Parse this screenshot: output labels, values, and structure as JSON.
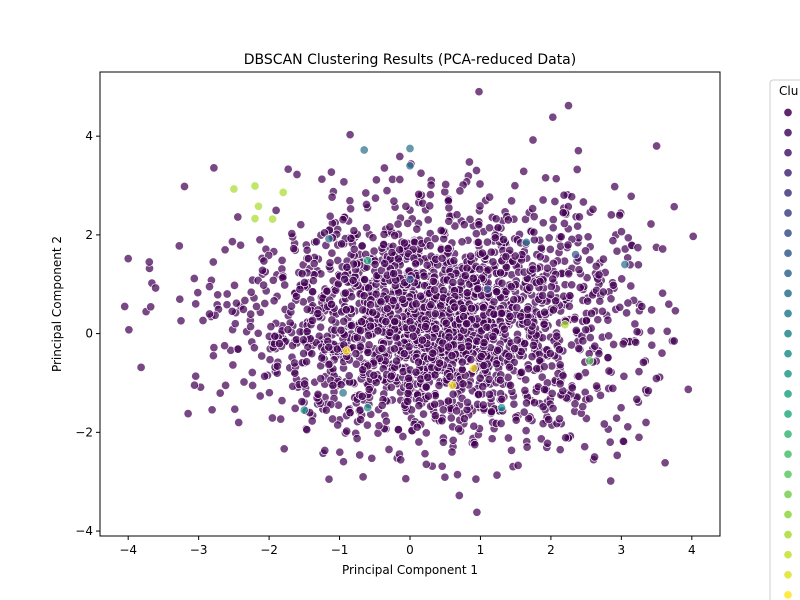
{
  "chart_data": {
    "type": "scatter",
    "title": "DBSCAN Clustering Results (PCA-reduced Data)",
    "xlabel": "Principal Component 1",
    "ylabel": "Principal Component 2",
    "xlim": [
      -4.4,
      4.4
    ],
    "ylim": [
      -4.1,
      5.3
    ],
    "xticks": [
      -4,
      -3,
      -2,
      -1,
      0,
      1,
      2,
      3,
      4
    ],
    "yticks": [
      -4,
      -2,
      0,
      2,
      4
    ],
    "grid": false,
    "legend": {
      "title": "Clu",
      "placement": "right-outside"
    },
    "cluster_colors": [
      "#440154",
      "#472878",
      "#3b528b",
      "#2c718e",
      "#21908d",
      "#27ad81",
      "#5cc863",
      "#aadc32",
      "#fde725"
    ],
    "main_cluster": {
      "name_color": "#440154",
      "center": [
        0.4,
        0.2
      ],
      "spread": [
        1.35,
        1.15
      ],
      "approx_points": 2400
    },
    "highlighted_points": [
      {
        "x": -2.5,
        "y": 2.93,
        "color": "#aadc32"
      },
      {
        "x": -2.2,
        "y": 2.99,
        "color": "#aadc32"
      },
      {
        "x": -1.8,
        "y": 2.86,
        "color": "#aadc32"
      },
      {
        "x": -2.15,
        "y": 2.58,
        "color": "#aadc32"
      },
      {
        "x": -1.95,
        "y": 2.32,
        "color": "#aadc32"
      },
      {
        "x": -2.2,
        "y": 2.33,
        "color": "#aadc32"
      },
      {
        "x": -0.65,
        "y": 3.72,
        "color": "#2c718e"
      },
      {
        "x": 0.0,
        "y": 3.4,
        "color": "#2c718e"
      },
      {
        "x": 0.0,
        "y": 3.75,
        "color": "#2c718e"
      },
      {
        "x": -1.15,
        "y": 1.92,
        "color": "#2c718e"
      },
      {
        "x": -0.6,
        "y": 1.48,
        "color": "#27ad81"
      },
      {
        "x": 1.65,
        "y": 1.85,
        "color": "#2c718e"
      },
      {
        "x": 2.2,
        "y": 0.18,
        "color": "#aadc32"
      },
      {
        "x": 2.55,
        "y": -0.55,
        "color": "#5cc863"
      },
      {
        "x": -0.9,
        "y": -0.35,
        "color": "#fde725"
      },
      {
        "x": 0.6,
        "y": -1.05,
        "color": "#fde725"
      },
      {
        "x": 0.9,
        "y": -0.7,
        "color": "#fde725"
      },
      {
        "x": -0.95,
        "y": -1.2,
        "color": "#2c718e"
      },
      {
        "x": -1.5,
        "y": -1.55,
        "color": "#21908d"
      },
      {
        "x": -0.6,
        "y": -1.5,
        "color": "#21908d"
      },
      {
        "x": 0.0,
        "y": 1.1,
        "color": "#3b528b"
      },
      {
        "x": 1.1,
        "y": 0.9,
        "color": "#3b528b"
      },
      {
        "x": 2.35,
        "y": 1.6,
        "color": "#3b528b"
      },
      {
        "x": 3.05,
        "y": 1.4,
        "color": "#2c718e"
      },
      {
        "x": 1.3,
        "y": -1.5,
        "color": "#21908d"
      }
    ],
    "outlier_points": [
      {
        "x": 0.98,
        "y": 4.9
      },
      {
        "x": 2.25,
        "y": 4.62
      },
      {
        "x": 4.02,
        "y": 1.97
      },
      {
        "x": 3.95,
        "y": -1.13
      },
      {
        "x": 3.35,
        "y": -1.8
      },
      {
        "x": 3.25,
        "y": -2.1
      },
      {
        "x": 0.95,
        "y": -3.62
      },
      {
        "x": 0.7,
        "y": -3.28
      },
      {
        "x": -1.15,
        "y": -2.95
      },
      {
        "x": -4.0,
        "y": 1.52
      },
      {
        "x": -3.7,
        "y": 1.45
      },
      {
        "x": -4.05,
        "y": 0.55
      },
      {
        "x": -3.2,
        "y": 2.98
      },
      {
        "x": -3.15,
        "y": -1.62
      },
      {
        "x": -0.85,
        "y": 4.03
      },
      {
        "x": 3.5,
        "y": 3.8
      },
      {
        "x": 3.42,
        "y": 2.22
      },
      {
        "x": 2.62,
        "y": -2.5
      }
    ]
  }
}
